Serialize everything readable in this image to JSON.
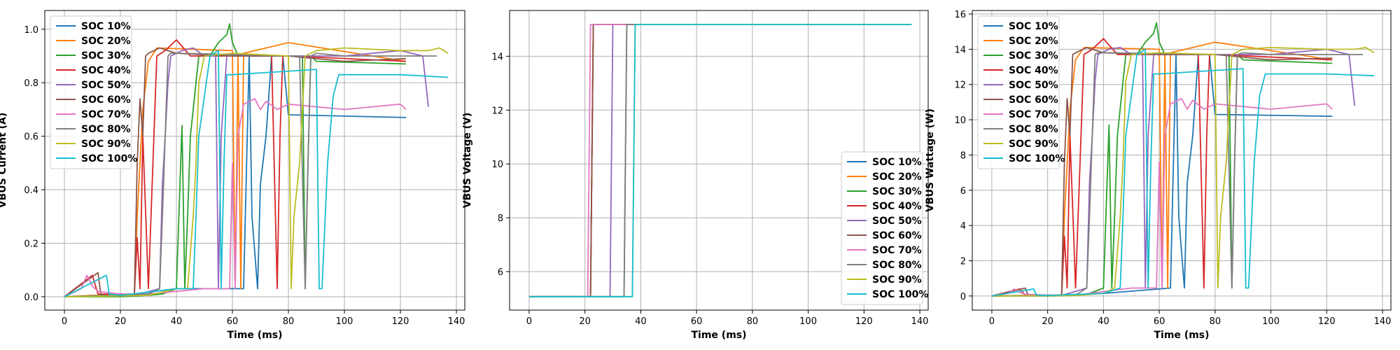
{
  "chart_data": [
    {
      "type": "line",
      "xlabel": "Time (ms)",
      "ylabel": "VBUS Current (A)",
      "xlim": [
        -7,
        143
      ],
      "ylim": [
        -0.05,
        1.07
      ],
      "xticks": [
        0,
        20,
        40,
        60,
        80,
        100,
        120,
        140
      ],
      "yticks": [
        0.0,
        0.2,
        0.4,
        0.6,
        0.8,
        1.0
      ],
      "ytick_decimals": 1,
      "grid": true,
      "legend_placement": "top-left",
      "series": [
        {
          "name": "SOC 10%",
          "x": [
            0,
            10,
            20,
            25,
            40,
            64,
            66,
            67,
            69,
            70,
            72,
            74,
            78,
            80,
            122
          ],
          "y": [
            0.0,
            0.005,
            0.005,
            0.01,
            0.03,
            0.03,
            0.9,
            0.3,
            0.03,
            0.42,
            0.6,
            0.9,
            0.9,
            0.68,
            0.67
          ]
        },
        {
          "name": "SOC 20%",
          "x": [
            0,
            10,
            20,
            25,
            26,
            28,
            30,
            33,
            60,
            61,
            62,
            63,
            64,
            80,
            122
          ],
          "y": [
            0.0,
            0.005,
            0.005,
            0.01,
            0.3,
            0.7,
            0.88,
            0.93,
            0.92,
            0.03,
            0.9,
            0.03,
            0.91,
            0.95,
            0.88
          ]
        },
        {
          "name": "SOC 30%",
          "x": [
            0,
            20,
            30,
            35,
            40,
            42,
            43,
            44,
            45,
            48,
            52,
            55,
            58,
            59,
            60,
            62,
            80,
            85,
            86,
            87,
            88,
            90,
            122
          ],
          "y": [
            0.0,
            0.0,
            0.005,
            0.01,
            0.03,
            0.64,
            0.03,
            0.3,
            0.6,
            0.9,
            0.9,
            0.95,
            0.98,
            1.02,
            0.95,
            0.9,
            0.9,
            0.9,
            0.03,
            0.5,
            0.9,
            0.88,
            0.87
          ]
        },
        {
          "name": "SOC 40%",
          "x": [
            0,
            10,
            12,
            20,
            25,
            26,
            27,
            28,
            29,
            30,
            31,
            33,
            36,
            40,
            45,
            60,
            74,
            76,
            77,
            78,
            80,
            122
          ],
          "y": [
            0.0,
            0.08,
            0.01,
            0.01,
            0.01,
            0.22,
            0.03,
            0.6,
            0.32,
            0.03,
            0.32,
            0.9,
            0.92,
            0.96,
            0.9,
            0.9,
            0.9,
            0.03,
            0.6,
            0.9,
            0.9,
            0.88
          ]
        },
        {
          "name": "SOC 50%",
          "x": [
            0,
            25,
            34,
            35,
            36,
            37,
            38,
            42,
            46,
            50,
            54,
            55,
            56,
            58,
            62,
            80,
            100,
            120,
            128,
            130
          ],
          "y": [
            0.0,
            0.005,
            0.03,
            0.42,
            0.6,
            0.8,
            0.9,
            0.92,
            0.93,
            0.9,
            0.9,
            0.03,
            0.6,
            0.9,
            0.9,
            0.9,
            0.9,
            0.92,
            0.9,
            0.71
          ]
        },
        {
          "name": "SOC 60%",
          "x": [
            0,
            12,
            13,
            14,
            20,
            25,
            26,
            27,
            28,
            29,
            30,
            34,
            40,
            60,
            80,
            100,
            122
          ],
          "y": [
            0.0,
            0.09,
            0.01,
            0.005,
            0.005,
            0.01,
            0.5,
            0.74,
            0.6,
            0.9,
            0.91,
            0.93,
            0.91,
            0.9,
            0.9,
            0.88,
            0.89
          ]
        },
        {
          "name": "SOC 70%",
          "x": [
            0,
            6,
            8,
            10,
            12,
            20,
            30,
            50,
            59,
            60,
            61,
            62,
            64,
            68,
            70,
            72,
            76,
            80,
            100,
            120,
            122
          ],
          "y": [
            0.0,
            0.03,
            0.08,
            0.04,
            0.02,
            0.01,
            0.01,
            0.03,
            0.03,
            0.5,
            0.03,
            0.6,
            0.72,
            0.74,
            0.7,
            0.73,
            0.7,
            0.72,
            0.7,
            0.72,
            0.7
          ]
        },
        {
          "name": "SOC 80%",
          "x": [
            0,
            30,
            34,
            35,
            36,
            37,
            38,
            42,
            80,
            84,
            86,
            87,
            88,
            90,
            100,
            120,
            130,
            133
          ],
          "y": [
            0.0,
            0.01,
            0.03,
            0.3,
            0.6,
            0.9,
            0.91,
            0.91,
            0.9,
            0.9,
            0.03,
            0.5,
            0.9,
            0.91,
            0.9,
            0.9,
            0.9,
            0.9
          ]
        },
        {
          "name": "SOC 90%",
          "x": [
            0,
            30,
            40,
            44,
            46,
            47,
            48,
            50,
            60,
            80,
            81,
            82,
            84,
            86,
            90,
            100,
            120,
            130,
            134,
            137
          ],
          "y": [
            0.0,
            0.005,
            0.03,
            0.03,
            0.3,
            0.5,
            0.8,
            0.9,
            0.91,
            0.9,
            0.03,
            0.3,
            0.5,
            0.9,
            0.92,
            0.93,
            0.92,
            0.92,
            0.93,
            0.91
          ]
        },
        {
          "name": "SOC 100%",
          "x": [
            0,
            15,
            16,
            20,
            40,
            46,
            47,
            48,
            52,
            55,
            56,
            57,
            58,
            60,
            90,
            91,
            92,
            94,
            96,
            98,
            100,
            120,
            137
          ],
          "y": [
            0.0,
            0.08,
            0.01,
            0.005,
            0.03,
            0.03,
            0.3,
            0.6,
            0.9,
            0.92,
            0.03,
            0.5,
            0.83,
            0.83,
            0.85,
            0.03,
            0.03,
            0.5,
            0.75,
            0.83,
            0.83,
            0.83,
            0.82
          ]
        }
      ]
    },
    {
      "type": "line",
      "xlabel": "Time (ms)",
      "ylabel": "VBUS Voltage (V)",
      "xlim": [
        -7,
        143
      ],
      "ylim": [
        4.57,
        15.7
      ],
      "xticks": [
        0,
        20,
        40,
        60,
        80,
        100,
        120,
        140
      ],
      "yticks": [
        6,
        8,
        10,
        12,
        14
      ],
      "ytick_decimals": 0,
      "grid": true,
      "legend_placement": "lower-right",
      "series": [
        {
          "name": "SOC 10%",
          "x": [
            0,
            21,
            22,
            23,
            137
          ],
          "y": [
            5.07,
            5.07,
            5.07,
            15.18,
            15.18
          ]
        },
        {
          "name": "SOC 20%",
          "x": [
            0,
            22,
            23,
            137
          ],
          "y": [
            5.07,
            5.07,
            15.18,
            15.18
          ]
        },
        {
          "name": "SOC 30%",
          "x": [
            0,
            34,
            35,
            137
          ],
          "y": [
            5.07,
            5.07,
            15.18,
            15.18
          ]
        },
        {
          "name": "SOC 40%",
          "x": [
            0,
            22,
            23,
            137
          ],
          "y": [
            5.07,
            5.07,
            15.18,
            15.18
          ]
        },
        {
          "name": "SOC 50%",
          "x": [
            0,
            29,
            30,
            137
          ],
          "y": [
            5.07,
            5.07,
            15.18,
            15.18
          ]
        },
        {
          "name": "SOC 60%",
          "x": [
            0,
            22,
            23,
            137
          ],
          "y": [
            5.07,
            5.07,
            15.18,
            15.18
          ]
        },
        {
          "name": "SOC 70%",
          "x": [
            0,
            21,
            22,
            137
          ],
          "y": [
            5.07,
            5.07,
            15.18,
            15.18
          ]
        },
        {
          "name": "SOC 80%",
          "x": [
            0,
            34,
            35,
            137
          ],
          "y": [
            5.07,
            5.07,
            15.18,
            15.18
          ]
        },
        {
          "name": "SOC 90%",
          "x": [
            0,
            37,
            38,
            137
          ],
          "y": [
            5.07,
            5.07,
            15.18,
            15.18
          ]
        },
        {
          "name": "SOC 100%",
          "x": [
            0,
            37,
            38,
            137
          ],
          "y": [
            5.07,
            5.07,
            15.18,
            15.18
          ]
        }
      ]
    },
    {
      "type": "line",
      "xlabel": "Time (ms)",
      "ylabel": "VBUS Wattage (W)",
      "xlim": [
        -7,
        143
      ],
      "ylim": [
        -0.8,
        16.2
      ],
      "xticks": [
        0,
        20,
        40,
        60,
        80,
        100,
        120,
        140
      ],
      "yticks": [
        0,
        2,
        4,
        6,
        8,
        10,
        12,
        14,
        16
      ],
      "ytick_decimals": 0,
      "grid": true,
      "legend_placement": "top-left",
      "series": [
        {
          "name": "SOC 10%",
          "x": [
            0,
            10,
            20,
            25,
            40,
            64,
            66,
            67,
            69,
            70,
            72,
            74,
            78,
            80,
            122
          ],
          "y": [
            0.0,
            0.03,
            0.03,
            0.05,
            0.15,
            0.45,
            13.7,
            4.5,
            0.45,
            6.4,
            9.1,
            13.7,
            13.7,
            10.3,
            10.2
          ]
        },
        {
          "name": "SOC 20%",
          "x": [
            0,
            10,
            20,
            25,
            26,
            28,
            30,
            33,
            60,
            61,
            62,
            63,
            64,
            80,
            122
          ],
          "y": [
            0.0,
            0.03,
            0.03,
            0.05,
            4.5,
            10.6,
            13.4,
            14.1,
            14.0,
            0.45,
            13.7,
            0.45,
            13.8,
            14.4,
            13.4
          ]
        },
        {
          "name": "SOC 30%",
          "x": [
            0,
            20,
            30,
            35,
            40,
            42,
            43,
            44,
            45,
            48,
            52,
            55,
            58,
            59,
            60,
            62,
            80,
            85,
            86,
            87,
            88,
            90,
            122
          ],
          "y": [
            0.0,
            0.0,
            0.03,
            0.15,
            0.45,
            9.7,
            0.45,
            4.5,
            9.1,
            13.7,
            13.7,
            14.4,
            14.9,
            15.5,
            14.4,
            13.7,
            13.7,
            13.7,
            0.45,
            7.6,
            13.7,
            13.4,
            13.2
          ]
        },
        {
          "name": "SOC 40%",
          "x": [
            0,
            10,
            12,
            20,
            25,
            26,
            27,
            28,
            29,
            30,
            31,
            33,
            36,
            40,
            45,
            60,
            74,
            76,
            77,
            78,
            80,
            122
          ],
          "y": [
            0.0,
            0.4,
            0.05,
            0.05,
            0.05,
            3.4,
            0.45,
            9.1,
            4.9,
            0.45,
            4.9,
            13.7,
            14.0,
            14.6,
            13.7,
            13.7,
            13.7,
            0.45,
            9.1,
            13.7,
            13.7,
            13.4
          ]
        },
        {
          "name": "SOC 50%",
          "x": [
            0,
            25,
            34,
            35,
            36,
            37,
            38,
            42,
            46,
            50,
            54,
            55,
            56,
            58,
            62,
            80,
            100,
            120,
            128,
            130
          ],
          "y": [
            0.0,
            0.03,
            0.45,
            6.4,
            9.1,
            12.2,
            13.7,
            14.0,
            14.1,
            13.7,
            13.7,
            0.45,
            9.1,
            13.7,
            13.7,
            13.7,
            13.7,
            14.0,
            13.7,
            10.8
          ]
        },
        {
          "name": "SOC 60%",
          "x": [
            0,
            12,
            13,
            14,
            20,
            25,
            26,
            27,
            28,
            29,
            30,
            34,
            40,
            60,
            80,
            100,
            122
          ],
          "y": [
            0.0,
            0.45,
            0.05,
            0.03,
            0.03,
            0.05,
            7.6,
            11.2,
            9.1,
            13.7,
            13.8,
            14.1,
            13.8,
            13.7,
            13.7,
            13.4,
            13.5
          ]
        },
        {
          "name": "SOC 70%",
          "x": [
            0,
            6,
            8,
            10,
            12,
            20,
            30,
            50,
            59,
            60,
            61,
            62,
            64,
            68,
            70,
            72,
            76,
            80,
            100,
            120,
            122
          ],
          "y": [
            0.0,
            0.15,
            0.4,
            0.2,
            0.1,
            0.05,
            0.05,
            0.45,
            0.45,
            7.6,
            0.45,
            9.1,
            10.9,
            11.2,
            10.6,
            11.1,
            10.6,
            10.9,
            10.6,
            10.9,
            10.6
          ]
        },
        {
          "name": "SOC 80%",
          "x": [
            0,
            30,
            34,
            35,
            36,
            37,
            38,
            42,
            80,
            84,
            86,
            87,
            88,
            90,
            100,
            120,
            130,
            133
          ],
          "y": [
            0.0,
            0.05,
            0.45,
            4.5,
            9.1,
            13.7,
            13.8,
            13.8,
            13.7,
            13.7,
            0.45,
            7.6,
            13.7,
            13.8,
            13.7,
            13.7,
            13.7,
            13.7
          ]
        },
        {
          "name": "SOC 90%",
          "x": [
            0,
            30,
            40,
            44,
            46,
            47,
            48,
            50,
            60,
            80,
            81,
            82,
            84,
            86,
            90,
            100,
            120,
            130,
            134,
            137
          ],
          "y": [
            0.0,
            0.03,
            0.15,
            0.45,
            4.5,
            7.6,
            12.2,
            13.7,
            13.8,
            13.7,
            0.45,
            4.5,
            7.6,
            13.7,
            14.0,
            14.1,
            14.0,
            14.0,
            14.1,
            13.8
          ]
        },
        {
          "name": "SOC 100%",
          "x": [
            0,
            15,
            16,
            20,
            40,
            46,
            47,
            48,
            52,
            55,
            56,
            57,
            58,
            60,
            90,
            91,
            92,
            94,
            96,
            98,
            100,
            120,
            137
          ],
          "y": [
            0.0,
            0.4,
            0.05,
            0.03,
            0.15,
            0.45,
            4.5,
            9.1,
            13.7,
            14.0,
            0.45,
            7.6,
            12.6,
            12.6,
            12.9,
            0.45,
            0.45,
            7.6,
            11.4,
            12.6,
            12.6,
            12.6,
            12.5
          ]
        }
      ]
    }
  ],
  "colors": [
    "#1f77b4",
    "#ff7f0e",
    "#2ca02c",
    "#d62728",
    "#9467bd",
    "#8c564b",
    "#e377c2",
    "#7f7f7f",
    "#bcbd22",
    "#17becf"
  ]
}
